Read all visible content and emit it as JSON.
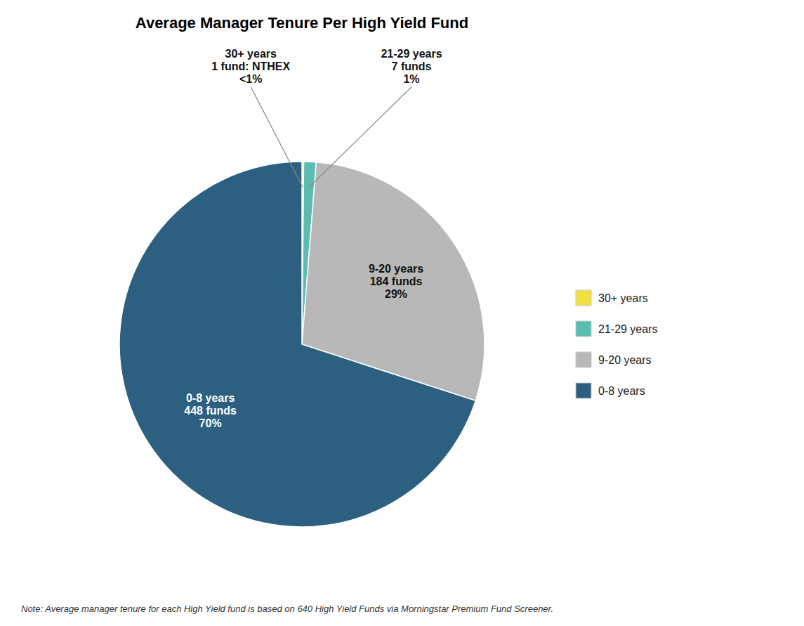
{
  "chart_data": {
    "type": "pie",
    "title": "Average Manager Tenure Per High Yield Fund",
    "categories": [
      "30+ years",
      "21-29 years",
      "9-20 years",
      "0-8 years"
    ],
    "values": [
      1,
      7,
      184,
      448
    ],
    "value_labels": [
      "30+ years\n1 fund: NTHEX\n<1%",
      "21-29 years\n7 funds\n1%",
      "9-20 years\n184 funds\n29%",
      "0-8 years\n448 funds\n70%"
    ],
    "colors": [
      "#f0e040",
      "#5bbcb0",
      "#b8b8b8",
      "#2d6080"
    ],
    "legend": "right",
    "annotations": [
      "Note: Average manager tenure for each High Yield fund is based on 640 High Yield Funds via Morningstar Premium Fund Screener."
    ]
  }
}
